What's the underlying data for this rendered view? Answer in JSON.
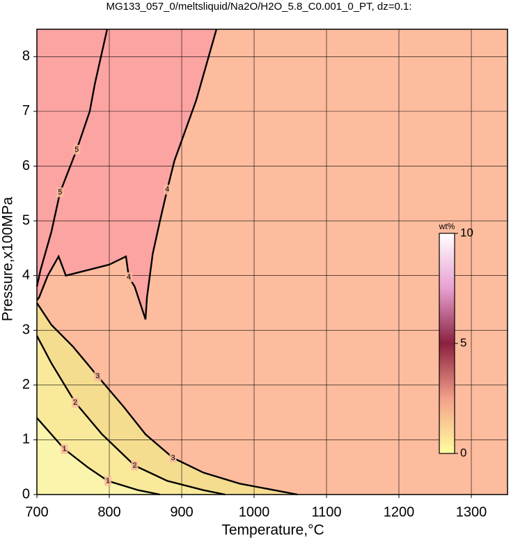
{
  "chart_data": {
    "type": "contour",
    "title": "MG133_057_0/meltsliquid/Na2O/H2O_5.8_C0.001_0_PT, dz=0.1:",
    "x_label": "Temperature,°C",
    "y_label": "Pressure,x100MPa",
    "xlim": [
      700,
      1350
    ],
    "ylim": [
      0,
      8.5
    ],
    "xticks": [
      700,
      800,
      900,
      1000,
      1100,
      1200,
      1300
    ],
    "yticks": [
      0,
      1,
      2,
      3,
      4,
      5,
      6,
      7,
      8
    ],
    "grid": true,
    "contours": [
      {
        "level": 5,
        "x": [
          797,
          780,
          773,
          755,
          732,
          720,
          705,
          700
        ],
        "y": [
          8.5,
          7.5,
          7.0,
          6.3,
          5.52,
          4.8,
          4.1,
          3.8
        ]
      },
      {
        "level": 4,
        "x": [
          948,
          920,
          890,
          880,
          870,
          860,
          852,
          850,
          835,
          827,
          823,
          800,
          770,
          740,
          730,
          715,
          703,
          700
        ],
        "y": [
          8.5,
          7.2,
          6.1,
          5.57,
          5.0,
          4.4,
          3.6,
          3.2,
          3.8,
          3.97,
          4.35,
          4.2,
          4.1,
          4.0,
          4.35,
          4.0,
          3.6,
          3.55
        ]
      },
      {
        "level": 3,
        "x": [
          700,
          720,
          750,
          784,
          820,
          850,
          888,
          930,
          980,
          1040,
          1060
        ],
        "y": [
          3.5,
          3.1,
          2.7,
          2.16,
          1.6,
          1.1,
          0.67,
          0.4,
          0.2,
          0.05,
          0
        ]
      },
      {
        "level": 2,
        "x": [
          700,
          720,
          753,
          790,
          835,
          880,
          930,
          960
        ],
        "y": [
          2.9,
          2.4,
          1.68,
          1.1,
          0.53,
          0.25,
          0.08,
          0
        ]
      },
      {
        "level": 1,
        "x": [
          700,
          738,
          770,
          798,
          840,
          870
        ],
        "y": [
          1.4,
          0.83,
          0.5,
          0.25,
          0.08,
          0
        ]
      }
    ],
    "colorbar": {
      "label": "wt%",
      "lim": [
        0,
        10
      ],
      "ticks": [
        0,
        5,
        10
      ],
      "colors": [
        "#ffffa0",
        "#f4a08a",
        "#8a2040",
        "#e8a0d0",
        "#ffffff"
      ]
    }
  }
}
